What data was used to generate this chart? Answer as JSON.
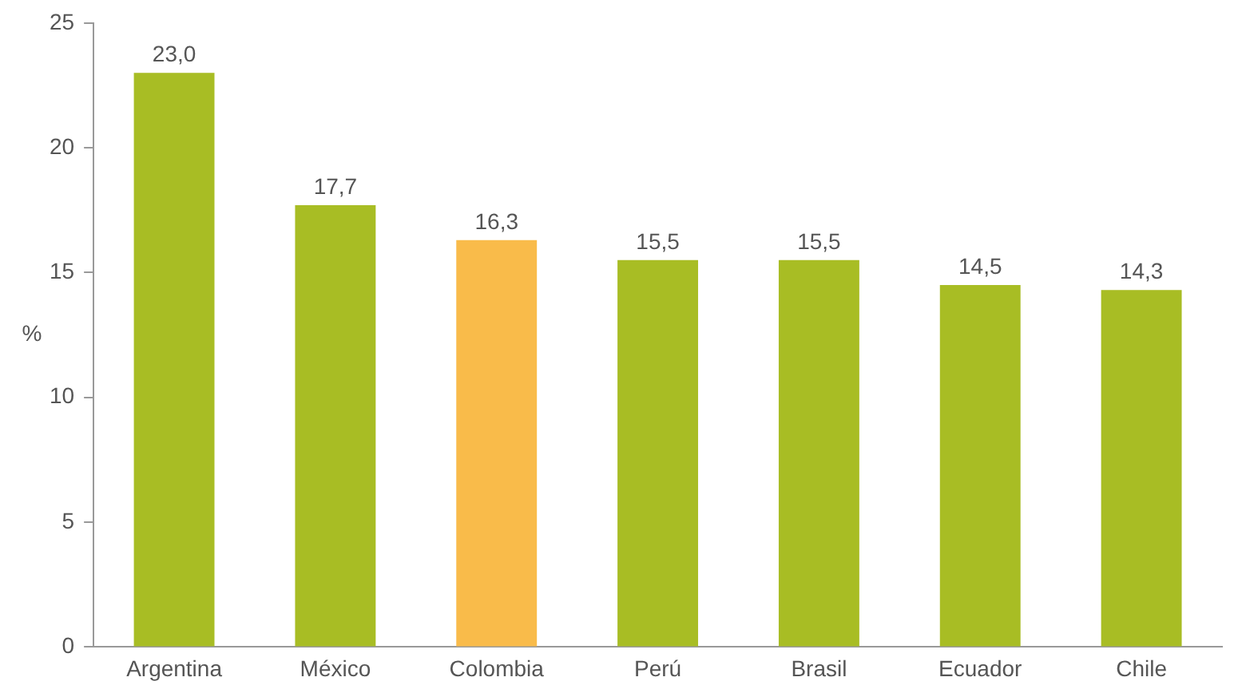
{
  "chart_data": {
    "type": "bar",
    "ylabel": "%",
    "categories": [
      "Argentina",
      "México",
      "Colombia",
      "Perú",
      "Brasil",
      "Ecuador",
      "Chile"
    ],
    "values": [
      23.0,
      17.7,
      16.3,
      15.5,
      15.5,
      14.5,
      14.3
    ],
    "colors": [
      "#a8bd24",
      "#a8bd24",
      "#f9bb4a",
      "#a8bd24",
      "#a8bd24",
      "#a8bd24",
      "#a8bd24"
    ],
    "value_labels": [
      "23,0",
      "17,7",
      "16,3",
      "15,5",
      "15,5",
      "14,5",
      "14,3"
    ],
    "ylim": [
      0,
      25
    ],
    "yticks": [
      0,
      5,
      10,
      15,
      20,
      25
    ],
    "grid": false,
    "legend": false
  }
}
